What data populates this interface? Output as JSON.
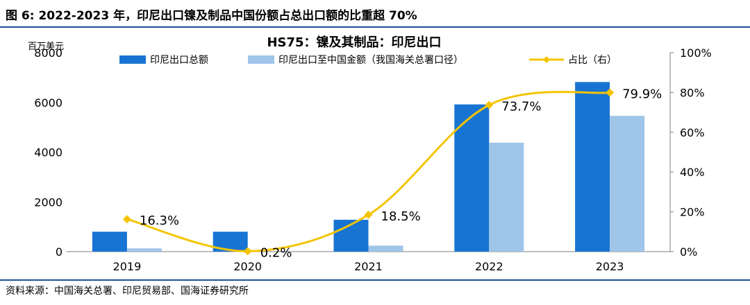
{
  "figure": {
    "label": "图 6:",
    "heading": "2022-2023 年，印尼出口镍及制品中国份额占总出口额的比重超 70%",
    "source": "资料来源：中国海关总署、印尼贸易部、国海证券研究所"
  },
  "colors": {
    "dark_blue": "#1874d2",
    "light_blue": "#9fc5e8",
    "line_yellow": "#f5c400",
    "rule_blue": "#1f4e9a",
    "axis_grey": "#7f7f7f"
  },
  "chart_data": {
    "type": "bar",
    "title": "HS75：镍及其制品：印尼出口",
    "ylabel_left": "百万美元",
    "categories": [
      "2019",
      "2020",
      "2021",
      "2022",
      "2023"
    ],
    "series": [
      {
        "name": "印尼出口总额",
        "kind": "bar",
        "axis": "left",
        "values": [
          800,
          800,
          1280,
          5920,
          6820
        ]
      },
      {
        "name": "印尼出口至中国金额（我国海关总署口径）",
        "kind": "bar",
        "axis": "left",
        "values": [
          130,
          0,
          240,
          4380,
          5460
        ]
      },
      {
        "name": "占比（右）",
        "kind": "line",
        "axis": "right",
        "values": [
          16.3,
          0.2,
          18.5,
          73.7,
          79.9
        ]
      }
    ],
    "point_labels": [
      "16.3%",
      "0.2%",
      "18.5%",
      "73.7%",
      "79.9%"
    ],
    "ylim_left": [
      0,
      8000
    ],
    "yticks_left": [
      "0",
      "2000",
      "4000",
      "6000",
      "8000"
    ],
    "ylim_right": [
      0,
      100
    ],
    "yticks_right": [
      "0%",
      "20%",
      "40%",
      "60%",
      "80%",
      "100%"
    ],
    "legend_position": "top",
    "grid": false
  }
}
